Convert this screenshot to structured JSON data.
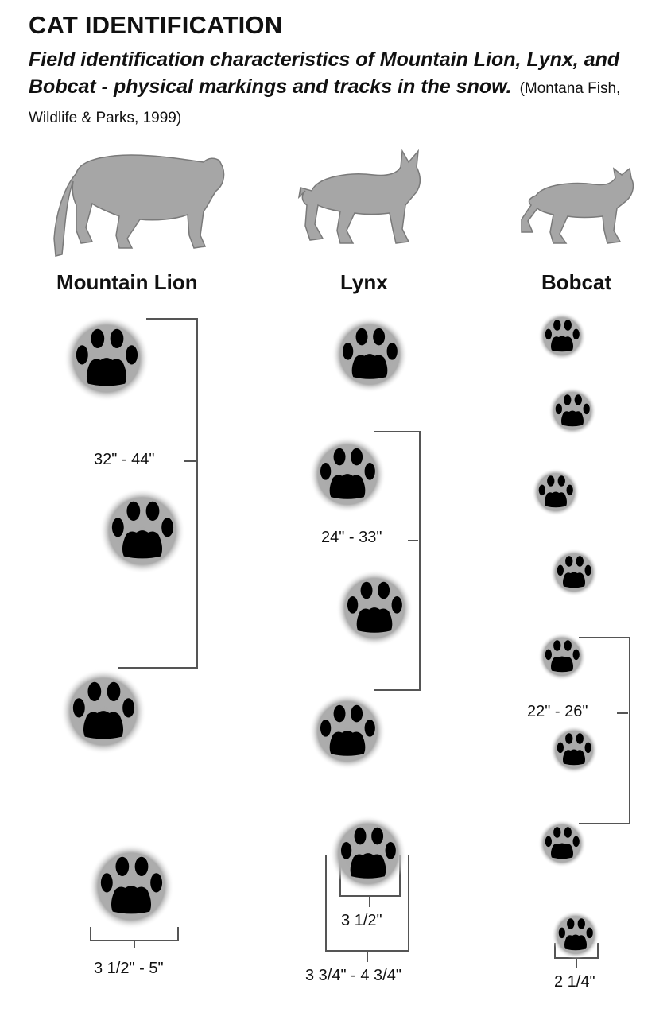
{
  "header": {
    "title": "CAT IDENTIFICATION",
    "subtitle": "Field identification characteristics of Mountain Lion, Lynx, and Bobcat - physical markings and tracks in the snow.",
    "citation": "(Montana Fish, Wildlife & Parks, 1999)"
  },
  "species": [
    {
      "name": "Mountain Lion",
      "stride_label": "32\" - 44\"",
      "track_size_label": "3 1/2\" - 5\""
    },
    {
      "name": "Lynx",
      "stride_label": "24\" - 33\"",
      "inner_track_label": "3 1/2\"",
      "track_size_label": "3 3/4\" - 4 3/4\""
    },
    {
      "name": "Bobcat",
      "stride_label": "22\" - 26\"",
      "track_size_label": "2 1/4\""
    }
  ],
  "colors": {
    "silhouette": "#a6a6a6",
    "silhouette_outline": "#7a7a7a",
    "track_halo": "#a9a9a9",
    "track_pad": "#000000",
    "bracket": "#555555"
  }
}
